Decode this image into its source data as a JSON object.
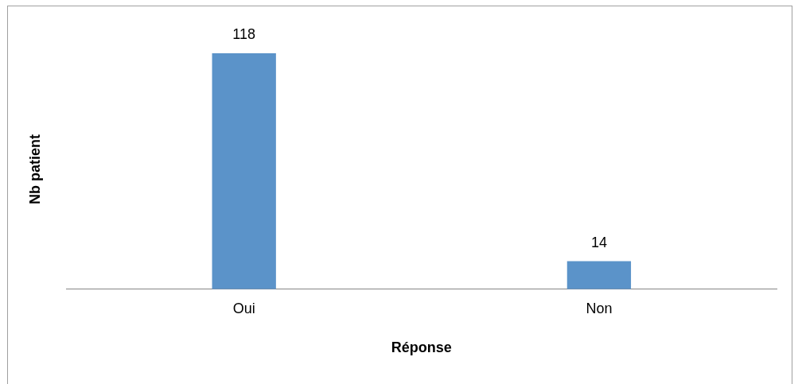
{
  "chart_data": {
    "type": "bar",
    "categories": [
      "Oui",
      "Non"
    ],
    "values": [
      118,
      14
    ],
    "color": "#5b93c9",
    "xlabel": "Réponse",
    "ylabel": "Nb patient",
    "data_labels": true,
    "grid": false,
    "legend": false
  }
}
